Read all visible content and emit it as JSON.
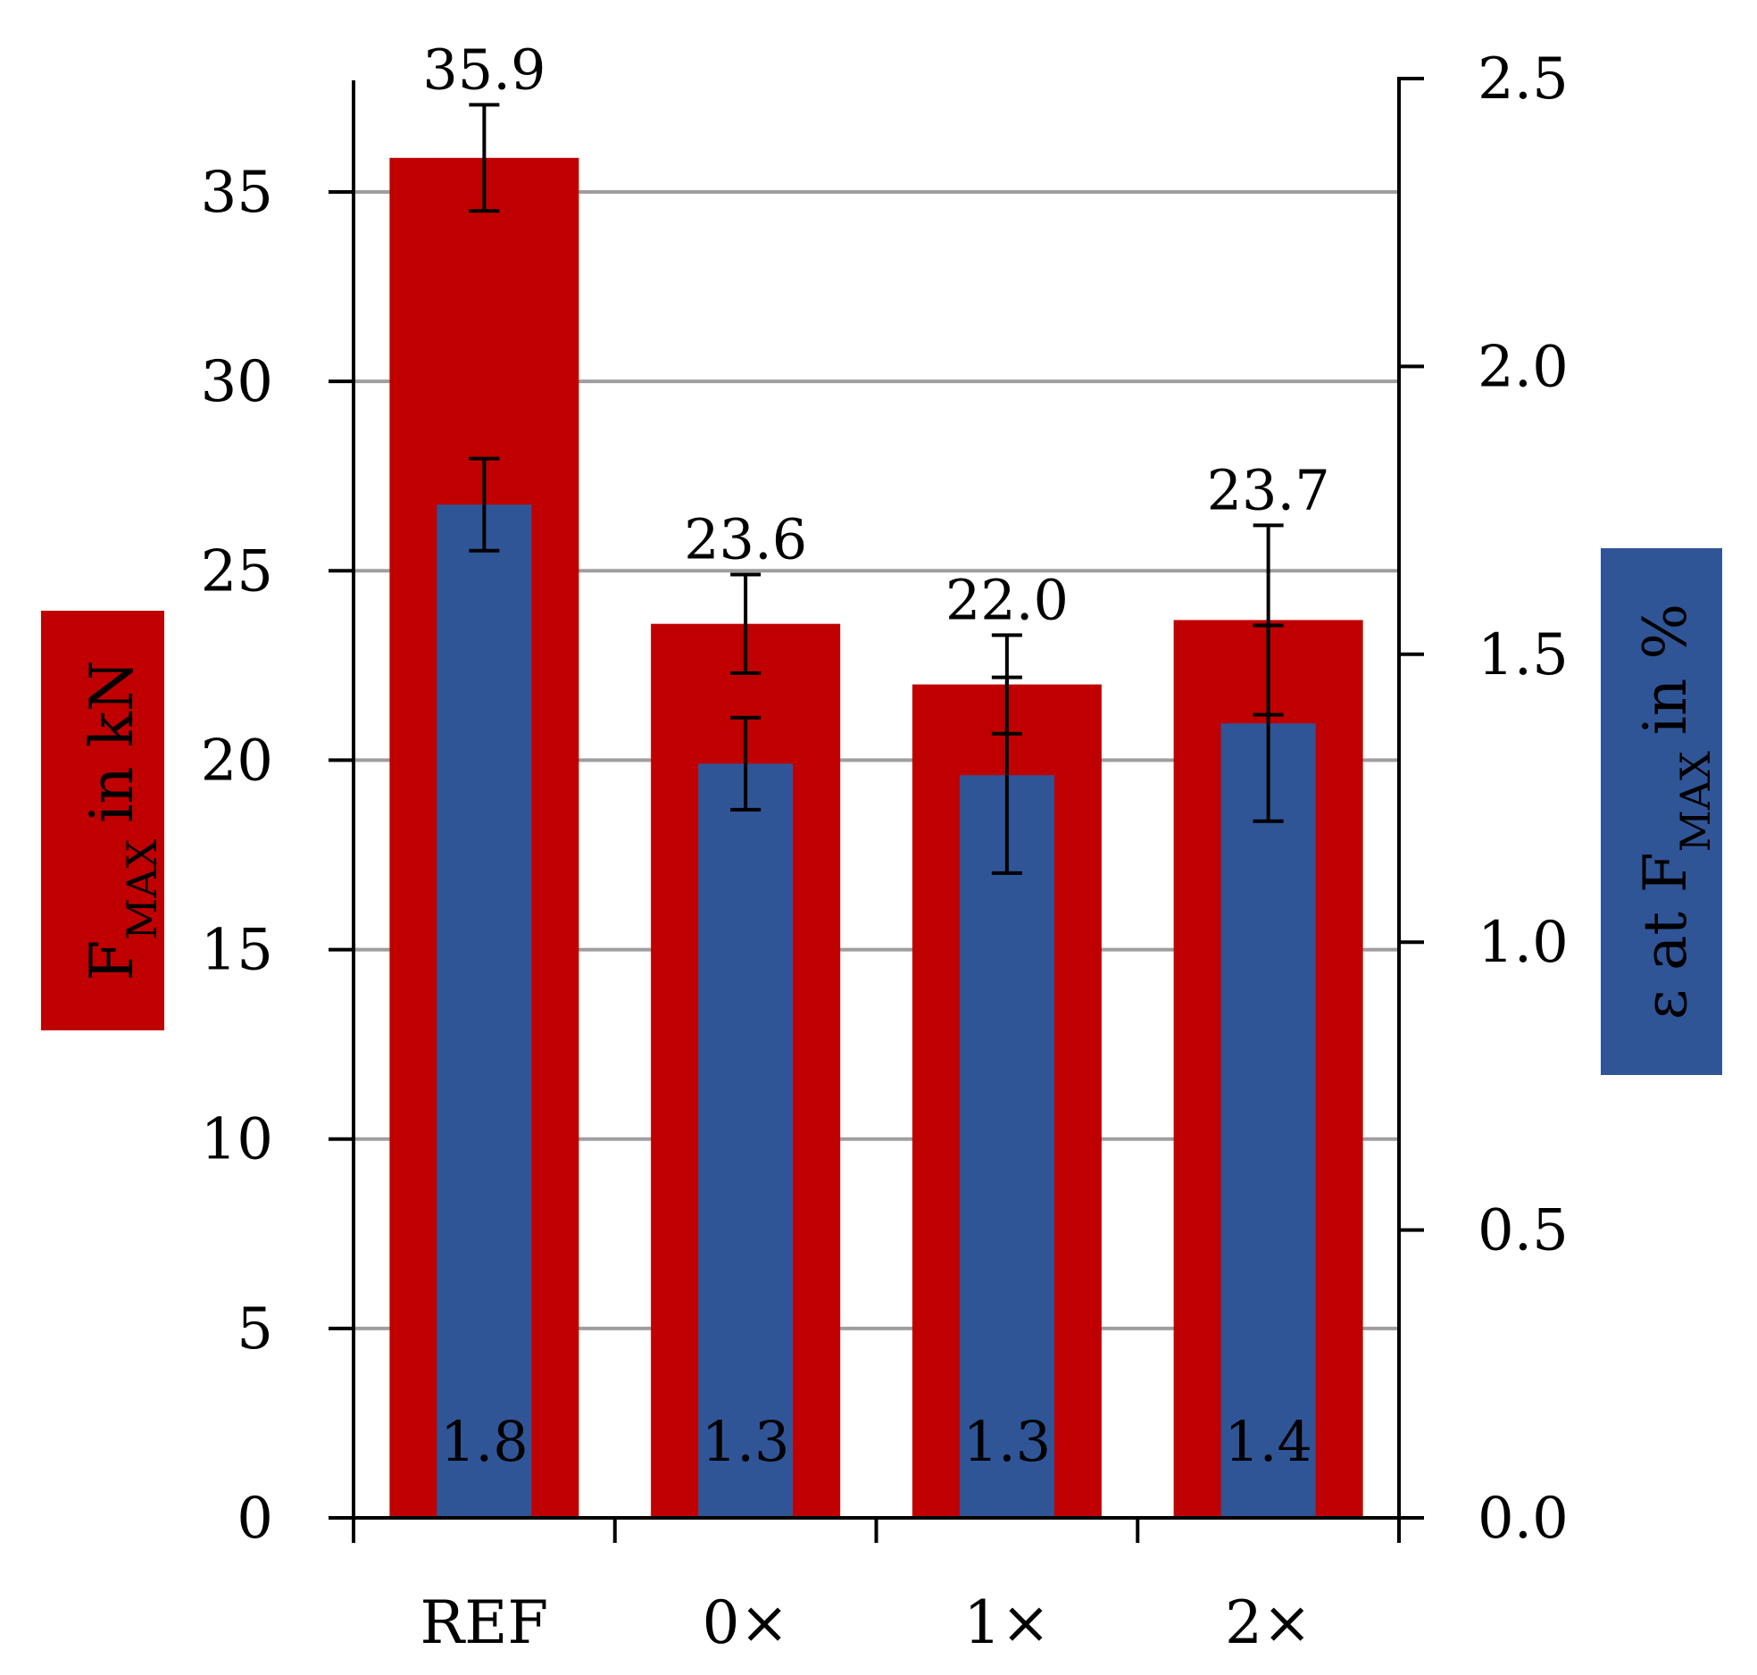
{
  "chart_data": {
    "type": "bar",
    "categories": [
      "REF",
      "0×",
      "1×",
      "2×"
    ],
    "series": [
      {
        "axis": "left",
        "values": [
          35.9,
          23.6,
          22.0,
          23.7
        ],
        "labels": [
          "35.9",
          "23.6",
          "22.0",
          "23.7"
        ],
        "errors": [
          1.4,
          1.3,
          1.3,
          2.5
        ],
        "color": "#C00000"
      },
      {
        "axis": "right",
        "values": [
          1.76,
          1.31,
          1.29,
          1.38
        ],
        "labels": [
          "1.8",
          "1.3",
          "1.3",
          "1.4"
        ],
        "errors": [
          0.08,
          0.08,
          0.17,
          0.17
        ],
        "color": "#2F5597"
      }
    ],
    "y_left": {
      "ticks": [
        "0",
        "5",
        "10",
        "15",
        "20",
        "25",
        "30",
        "35"
      ],
      "tick_values": [
        0,
        5,
        10,
        15,
        20,
        25,
        30,
        35
      ],
      "ylim": [
        0,
        38
      ],
      "title_main": "F",
      "title_sub": "MAX",
      "title_rest": "in kN",
      "badge_color": "#C00000"
    },
    "y_right": {
      "ticks": [
        "0.0",
        "0.5",
        "1.0",
        "1.5",
        "2.0",
        "2.5"
      ],
      "tick_values": [
        0,
        0.5,
        1.0,
        1.5,
        2.0,
        2.5
      ],
      "ylim": [
        0,
        2.5
      ],
      "title_pre": "ɛ at F",
      "title_sub": "MAX",
      "title_rest": "in %",
      "badge_color": "#2F5597"
    },
    "grid": true,
    "gridline_color": "#9e9e9e"
  }
}
